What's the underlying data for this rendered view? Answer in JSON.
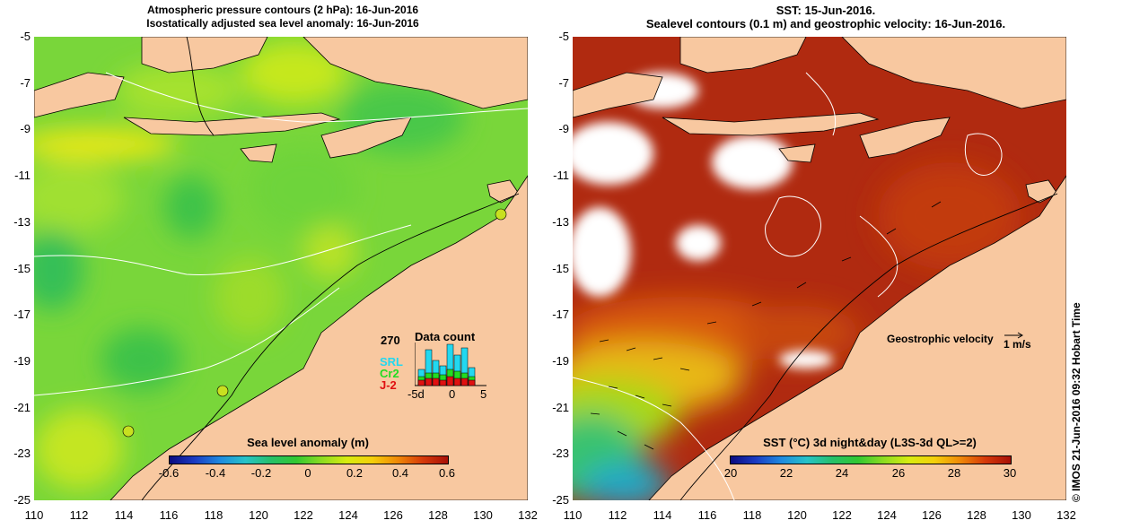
{
  "left_panel": {
    "title_line1": "Atmospheric pressure contours (2 hPa): 16-Jun-2016",
    "title_line2": "Isostatically adjusted sea level anomaly: 16-Jun-2016",
    "colorbar_title": "Sea level anomaly (m)",
    "colorbar_ticks": [
      "-0.6",
      "-0.4",
      "-0.2",
      "0",
      "0.2",
      "0.4",
      "0.6"
    ],
    "data_count": {
      "title": "Data count",
      "max_label": "270",
      "x_ticks": [
        "-5d",
        "0",
        "5"
      ],
      "satellites": [
        {
          "name": "SRL",
          "color": "#22d8f0"
        },
        {
          "name": "Cr2",
          "color": "#22dc22"
        },
        {
          "name": "J-2",
          "color": "#e01010"
        }
      ]
    }
  },
  "right_panel": {
    "title_line1": "SST: 15-Jun-2016.",
    "title_line2": "Sealevel contours (0.1 m) and geostrophic velocity: 16-Jun-2016.",
    "colorbar_title": "SST (°C) 3d night&day (L3S-3d QL>=2)",
    "colorbar_ticks": [
      "20",
      "22",
      "24",
      "26",
      "28",
      "30"
    ],
    "velocity_label": "Geostrophic velocity",
    "velocity_scale": "1 m/s"
  },
  "axes": {
    "y_ticks": [
      "-5",
      "-7",
      "-9",
      "-11",
      "-13",
      "-15",
      "-17",
      "-19",
      "-21",
      "-23",
      "-25"
    ],
    "x_ticks": [
      "110",
      "112",
      "114",
      "116",
      "118",
      "120",
      "122",
      "124",
      "126",
      "128",
      "130",
      "132"
    ]
  },
  "credit": "© IMOS 21-Jun-2016 09:32 Hobart Time",
  "colors": {
    "land": "#f8c8a0",
    "sla_base": "#7ad83a",
    "sst_base": "#b02a10"
  }
}
